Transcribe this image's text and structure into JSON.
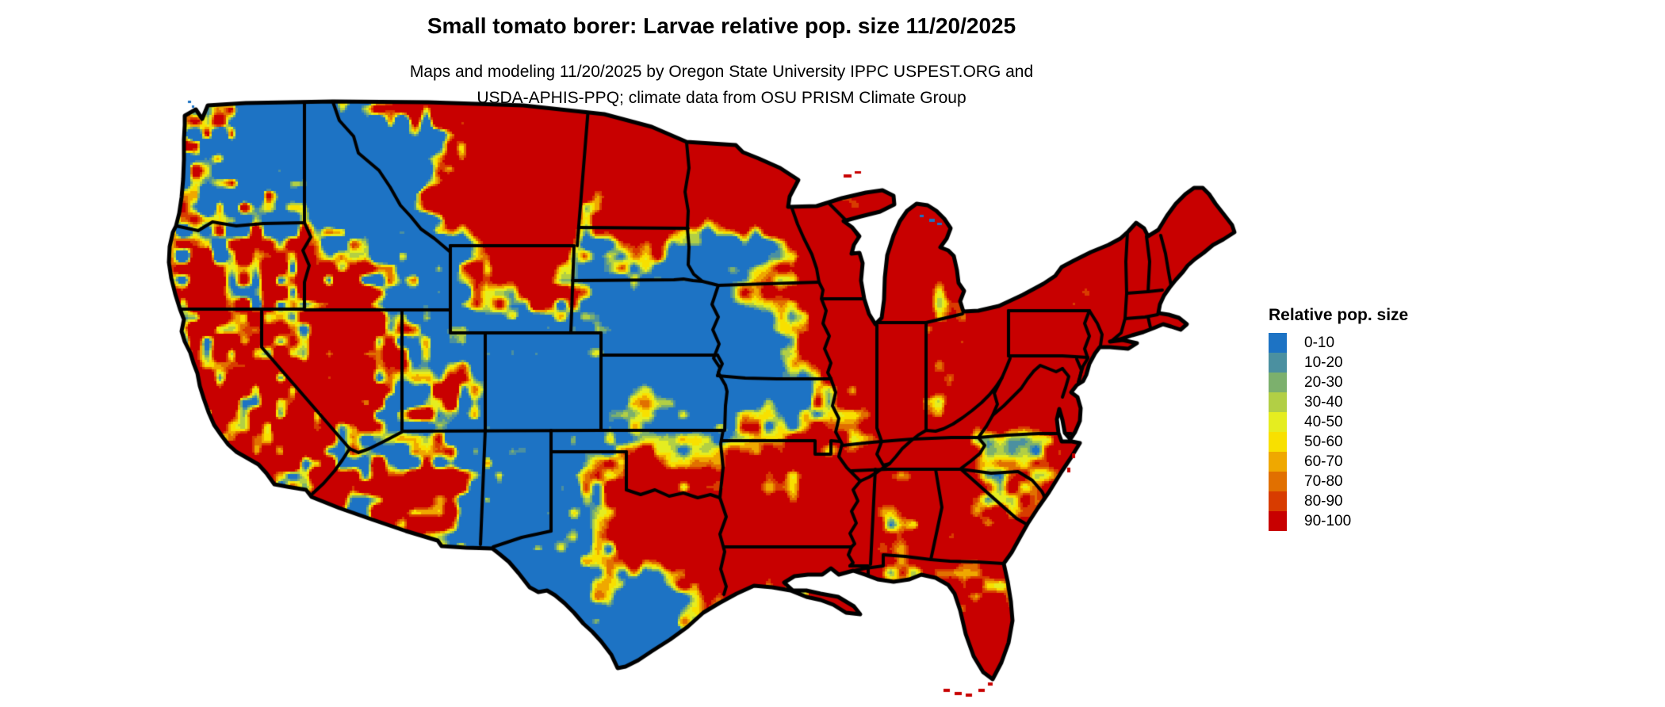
{
  "header": {
    "title": "Small tomato borer: Larvae relative pop. size 11/20/2025",
    "subtitle_line1": "Maps and modeling 11/20/2025 by Oregon State University IPPC USPEST.ORG and",
    "subtitle_line2": "USDA-APHIS-PPQ; climate data from OSU PRISM Climate Group"
  },
  "legend": {
    "title": "Relative pop. size",
    "items": [
      {
        "label": "0-10",
        "color": "#1d73c4"
      },
      {
        "label": "10-20",
        "color": "#4b90a0"
      },
      {
        "label": "20-30",
        "color": "#7cb06d"
      },
      {
        "label": "30-40",
        "color": "#b2cf45"
      },
      {
        "label": "40-50",
        "color": "#e5ed20"
      },
      {
        "label": "50-60",
        "color": "#f8e000"
      },
      {
        "label": "60-70",
        "color": "#efa800"
      },
      {
        "label": "70-80",
        "color": "#e17000"
      },
      {
        "label": "80-90",
        "color": "#d83c00"
      },
      {
        "label": "90-100",
        "color": "#c80000"
      }
    ]
  },
  "map": {
    "border_color": "#000000",
    "water_color": "#ffffff"
  }
}
